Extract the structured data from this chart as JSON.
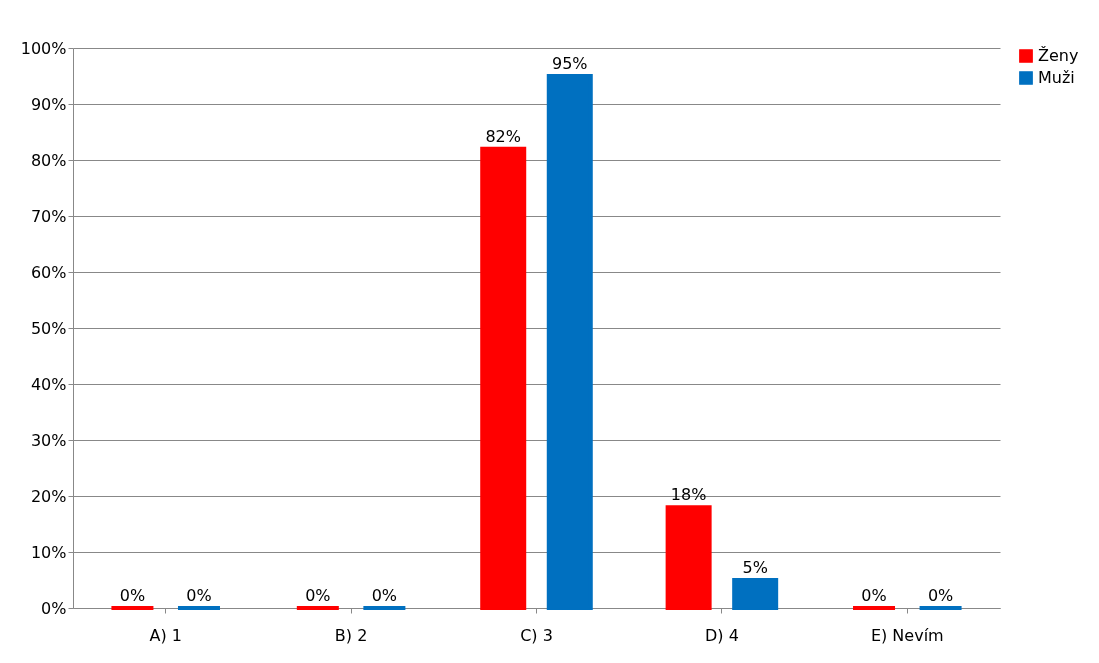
{
  "chart_data": {
    "type": "bar",
    "categories": [
      "A) 1",
      "B) 2",
      "C) 3",
      "D) 4",
      "E) Nevím"
    ],
    "series": [
      {
        "name": "Ženy",
        "color": "#ff0000",
        "values": [
          0,
          0,
          82,
          18,
          0
        ],
        "value_labels": [
          "0%",
          "0%",
          "82%",
          "18%",
          "0%"
        ]
      },
      {
        "name": "Muži",
        "color": "#0070c0",
        "values": [
          0,
          0,
          95,
          5,
          0
        ],
        "value_labels": [
          "0%",
          "0%",
          "95%",
          "5%",
          "0%"
        ]
      }
    ],
    "ylim": [
      0,
      100
    ],
    "yticks": [
      {
        "value": 0,
        "label": "0%"
      },
      {
        "value": 10,
        "label": "10%"
      },
      {
        "value": 20,
        "label": "20%"
      },
      {
        "value": 30,
        "label": "30%"
      },
      {
        "value": 40,
        "label": "40%"
      },
      {
        "value": 50,
        "label": "50%"
      },
      {
        "value": 60,
        "label": "60%"
      },
      {
        "value": 70,
        "label": "70%"
      },
      {
        "value": 80,
        "label": "80%"
      },
      {
        "value": 90,
        "label": "90%"
      },
      {
        "value": 100,
        "label": "100%"
      }
    ],
    "grid": "y",
    "legend": "right"
  }
}
